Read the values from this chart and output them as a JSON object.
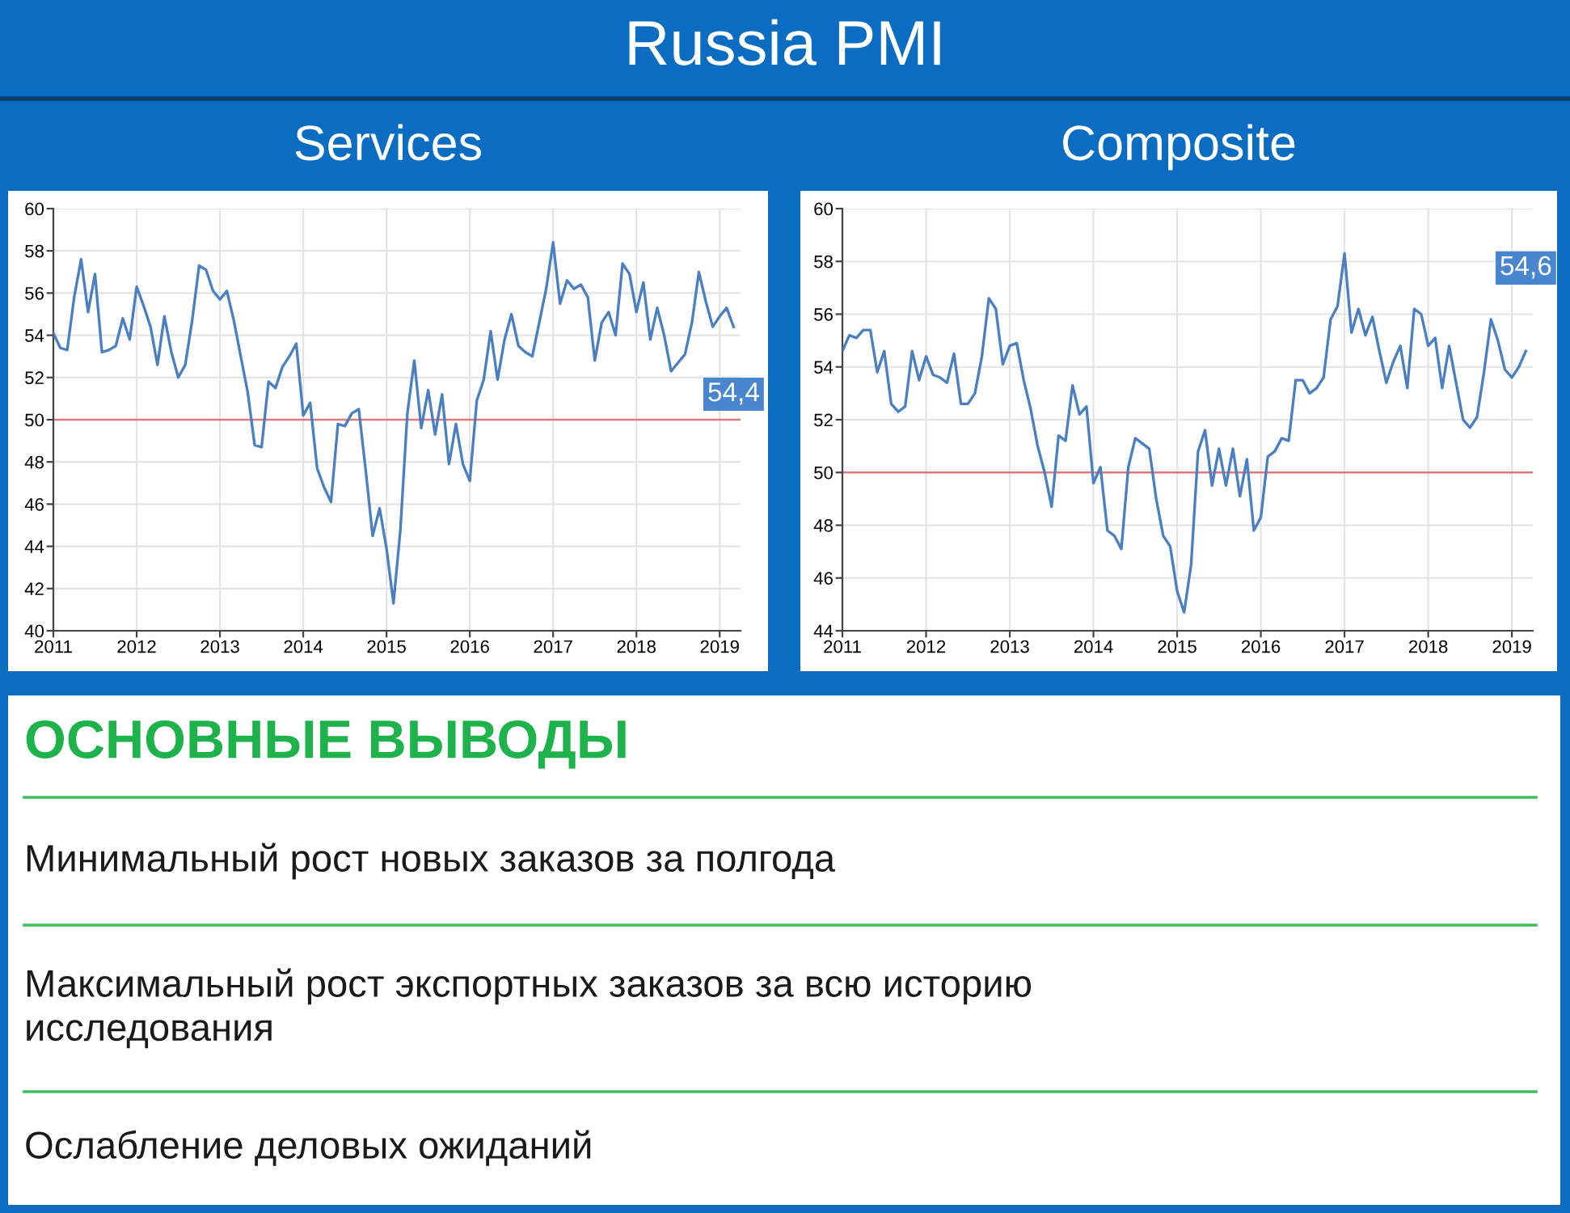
{
  "chart_data": [
    {
      "type": "other",
      "title": "Russia PMI"
    },
    {
      "type": "line",
      "title": "Services",
      "x": [
        "2011-01",
        "2011-02",
        "2011-03",
        "2011-04",
        "2011-05",
        "2011-06",
        "2011-07",
        "2011-08",
        "2011-09",
        "2011-10",
        "2011-11",
        "2011-12",
        "2012-01",
        "2012-02",
        "2012-03",
        "2012-04",
        "2012-05",
        "2012-06",
        "2012-07",
        "2012-08",
        "2012-09",
        "2012-10",
        "2012-11",
        "2012-12",
        "2013-01",
        "2013-02",
        "2013-03",
        "2013-04",
        "2013-05",
        "2013-06",
        "2013-07",
        "2013-08",
        "2013-09",
        "2013-10",
        "2013-11",
        "2013-12",
        "2014-01",
        "2014-02",
        "2014-03",
        "2014-04",
        "2014-05",
        "2014-06",
        "2014-07",
        "2014-08",
        "2014-09",
        "2014-10",
        "2014-11",
        "2014-12",
        "2015-01",
        "2015-02",
        "2015-03",
        "2015-04",
        "2015-05",
        "2015-06",
        "2015-07",
        "2015-08",
        "2015-09",
        "2015-10",
        "2015-11",
        "2015-12",
        "2016-01",
        "2016-02",
        "2016-03",
        "2016-04",
        "2016-05",
        "2016-06",
        "2016-07",
        "2016-08",
        "2016-09",
        "2016-10",
        "2016-11",
        "2016-12",
        "2017-01",
        "2017-02",
        "2017-03",
        "2017-04",
        "2017-05",
        "2017-06",
        "2017-07",
        "2017-08",
        "2017-09",
        "2017-10",
        "2017-11",
        "2017-12",
        "2018-01",
        "2018-02",
        "2018-03",
        "2018-04",
        "2018-05",
        "2018-06",
        "2018-07",
        "2018-08",
        "2018-09",
        "2018-10",
        "2018-11",
        "2018-12",
        "2019-01",
        "2019-02",
        "2019-03"
      ],
      "series": [
        {
          "color": "#4a7fc1",
          "values": [
            54.1,
            53.4,
            53.3,
            55.8,
            57.6,
            55.1,
            56.9,
            53.2,
            53.3,
            53.5,
            54.8,
            53.8,
            56.3,
            55.4,
            54.4,
            52.6,
            54.9,
            53.2,
            52.0,
            52.6,
            54.7,
            57.3,
            57.1,
            56.1,
            55.7,
            56.1,
            54.7,
            53.0,
            51.3,
            48.8,
            48.7,
            51.8,
            51.5,
            52.5,
            53.0,
            53.6,
            50.2,
            50.8,
            47.7,
            46.8,
            46.1,
            49.8,
            49.7,
            50.3,
            50.5,
            47.6,
            44.5,
            45.8,
            43.9,
            41.3,
            44.8,
            50.3,
            52.8,
            49.6,
            51.4,
            49.3,
            51.2,
            47.9,
            49.8,
            47.9,
            47.1,
            50.9,
            51.9,
            54.2,
            51.9,
            53.8,
            55.0,
            53.5,
            53.2,
            53.0,
            54.6,
            56.2,
            58.4,
            55.5,
            56.6,
            56.2,
            56.4,
            55.8,
            52.8,
            54.6,
            55.1,
            54.0,
            57.4,
            56.9,
            55.1,
            56.5,
            53.8,
            55.3,
            54.0,
            52.3,
            52.7,
            53.1,
            54.6,
            57.0,
            55.6,
            54.4,
            54.9,
            55.3,
            54.4
          ]
        }
      ],
      "xlim": [
        "2011-01",
        "2019-04"
      ],
      "xticks": [
        "2011",
        "2012",
        "2013",
        "2014",
        "2015",
        "2016",
        "2017",
        "2018",
        "2019"
      ],
      "ylim": [
        40,
        60
      ],
      "yticks": [
        40,
        42,
        44,
        46,
        48,
        50,
        52,
        54,
        56,
        58,
        60
      ],
      "grid": true,
      "ref_lines": [
        {
          "axis": "y",
          "value": 50,
          "color": "#e07a7a"
        }
      ],
      "annotations": [
        {
          "text": "54,4",
          "x": "2019-03",
          "y": 54.4
        }
      ]
    },
    {
      "type": "line",
      "title": "Composite",
      "x": [
        "2011-01",
        "2011-02",
        "2011-03",
        "2011-04",
        "2011-05",
        "2011-06",
        "2011-07",
        "2011-08",
        "2011-09",
        "2011-10",
        "2011-11",
        "2011-12",
        "2012-01",
        "2012-02",
        "2012-03",
        "2012-04",
        "2012-05",
        "2012-06",
        "2012-07",
        "2012-08",
        "2012-09",
        "2012-10",
        "2012-11",
        "2012-12",
        "2013-01",
        "2013-02",
        "2013-03",
        "2013-04",
        "2013-05",
        "2013-06",
        "2013-07",
        "2013-08",
        "2013-09",
        "2013-10",
        "2013-11",
        "2013-12",
        "2014-01",
        "2014-02",
        "2014-03",
        "2014-04",
        "2014-05",
        "2014-06",
        "2014-07",
        "2014-08",
        "2014-09",
        "2014-10",
        "2014-11",
        "2014-12",
        "2015-01",
        "2015-02",
        "2015-03",
        "2015-04",
        "2015-05",
        "2015-06",
        "2015-07",
        "2015-08",
        "2015-09",
        "2015-10",
        "2015-11",
        "2015-12",
        "2016-01",
        "2016-02",
        "2016-03",
        "2016-04",
        "2016-05",
        "2016-06",
        "2016-07",
        "2016-08",
        "2016-09",
        "2016-10",
        "2016-11",
        "2016-12",
        "2017-01",
        "2017-02",
        "2017-03",
        "2017-04",
        "2017-05",
        "2017-06",
        "2017-07",
        "2017-08",
        "2017-09",
        "2017-10",
        "2017-11",
        "2017-12",
        "2018-01",
        "2018-02",
        "2018-03",
        "2018-04",
        "2018-05",
        "2018-06",
        "2018-07",
        "2018-08",
        "2018-09",
        "2018-10",
        "2018-11",
        "2018-12",
        "2019-01",
        "2019-02",
        "2019-03"
      ],
      "series": [
        {
          "color": "#4a7fc1",
          "values": [
            54.6,
            55.2,
            55.1,
            55.4,
            55.4,
            53.8,
            54.6,
            52.6,
            52.3,
            52.5,
            54.6,
            53.5,
            54.4,
            53.7,
            53.6,
            53.4,
            54.5,
            52.6,
            52.6,
            53.0,
            54.4,
            56.6,
            56.2,
            54.1,
            54.8,
            54.9,
            53.5,
            52.4,
            51.0,
            50.0,
            48.7,
            51.4,
            51.2,
            53.3,
            52.2,
            52.5,
            49.6,
            50.2,
            47.8,
            47.6,
            47.1,
            50.2,
            51.3,
            51.1,
            50.9,
            49.0,
            47.6,
            47.2,
            45.5,
            44.7,
            46.5,
            50.8,
            51.6,
            49.5,
            50.9,
            49.5,
            50.9,
            49.1,
            50.5,
            47.8,
            48.3,
            50.6,
            50.8,
            51.3,
            51.2,
            53.5,
            53.5,
            53.0,
            53.2,
            53.6,
            55.8,
            56.3,
            58.3,
            55.3,
            56.2,
            55.2,
            55.9,
            54.6,
            53.4,
            54.2,
            54.8,
            53.2,
            56.2,
            56.0,
            54.8,
            55.1,
            53.2,
            54.8,
            53.4,
            52.0,
            51.7,
            52.1,
            53.8,
            55.8,
            55.0,
            53.9,
            53.6,
            54.0,
            54.6
          ]
        }
      ],
      "xlim": [
        "2011-01",
        "2019-04"
      ],
      "xticks": [
        "2011",
        "2012",
        "2013",
        "2014",
        "2015",
        "2016",
        "2017",
        "2018",
        "2019"
      ],
      "ylim": [
        44,
        60
      ],
      "yticks": [
        44,
        46,
        48,
        50,
        52,
        54,
        56,
        58,
        60
      ],
      "grid": true,
      "ref_lines": [
        {
          "axis": "y",
          "value": 50,
          "color": "#e07a7a"
        }
      ],
      "annotations": [
        {
          "text": "54,6",
          "x": "2019-03",
          "y": 54.6
        }
      ]
    },
    {
      "type": "other",
      "title": "ОСНОВНЫЕ ВЫВОДЫ",
      "annotations": [
        "Минимальный рост новых заказов за полгода",
        "Максимальный рост экспортных заказов за всю историю\nисследования",
        "Ослабление деловых ожиданий"
      ]
    }
  ]
}
